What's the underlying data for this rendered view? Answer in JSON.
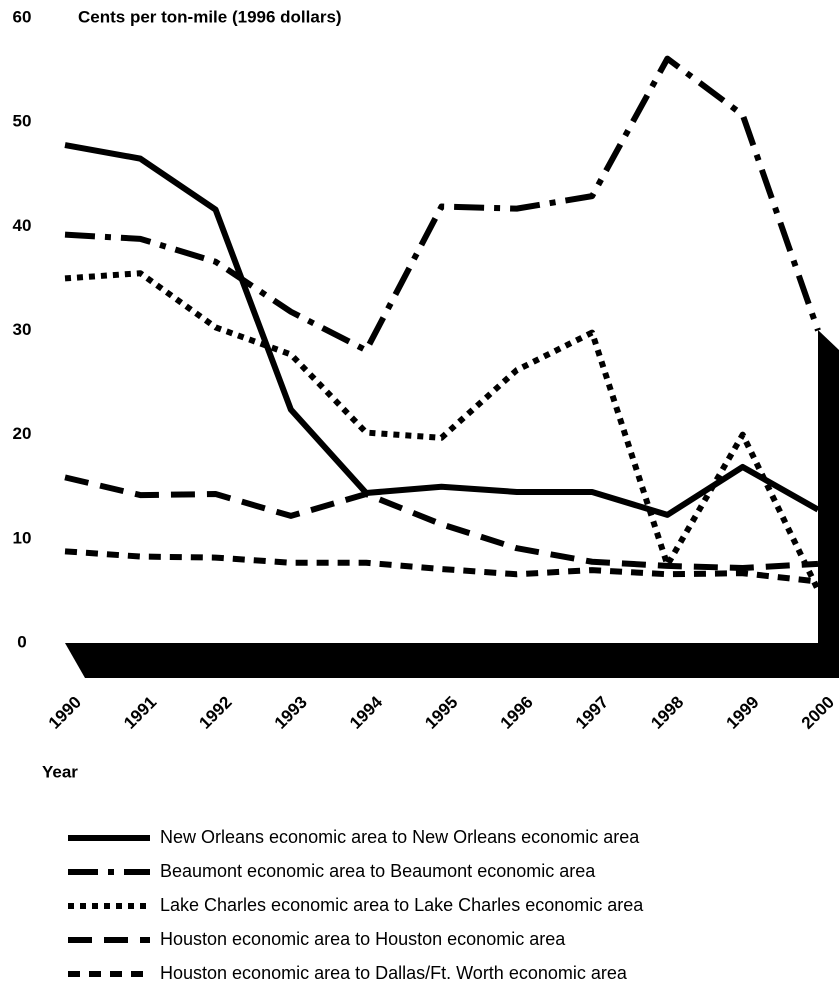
{
  "chart_data": {
    "type": "line",
    "title": "Cents per ton-mile (1996 dollars)",
    "x_label": "Year",
    "categories": [
      "1990",
      "1991",
      "1992",
      "1993",
      "1994",
      "1995",
      "1996",
      "1997",
      "1998",
      "1999",
      "2000"
    ],
    "ylim": [
      0,
      60
    ],
    "yticks": [
      0,
      10,
      20,
      30,
      40,
      50,
      60
    ],
    "grid": false,
    "series": [
      {
        "name": "New Orleans economic area to New Orleans economic area",
        "color": "#000000",
        "linestyle": "solid",
        "values": [
          47.8,
          46.5,
          41.6,
          22.4,
          14.4,
          15.0,
          14.5,
          14.5,
          12.3,
          16.9,
          12.8
        ]
      },
      {
        "name": "Beaumont economic area to Beaumont economic area",
        "color": "#000000",
        "linestyle": "dashdot",
        "values": [
          39.2,
          38.8,
          36.6,
          31.8,
          28.1,
          41.9,
          41.7,
          42.9,
          56.1,
          50.7,
          30.0
        ]
      },
      {
        "name": "Lake Charles economic area to Lake Charles economic area",
        "color": "#000000",
        "linestyle": "dotted",
        "values": [
          35.0,
          35.5,
          30.3,
          27.7,
          20.2,
          19.7,
          26.2,
          29.8,
          7.5,
          20.0,
          5.1
        ]
      },
      {
        "name": "Houston economic area to Houston economic area",
        "color": "#000000",
        "linestyle": "dashed",
        "values": [
          15.9,
          14.2,
          14.3,
          12.2,
          14.3,
          11.4,
          9.1,
          7.8,
          7.4,
          7.2,
          7.6
        ]
      },
      {
        "name": "Houston economic area to Dallas/Ft. Worth economic area",
        "color": "#000000",
        "linestyle": "shortdash",
        "values": [
          8.8,
          8.3,
          8.2,
          7.7,
          7.7,
          7.1,
          6.6,
          7.0,
          6.6,
          6.7,
          5.9
        ]
      }
    ]
  }
}
